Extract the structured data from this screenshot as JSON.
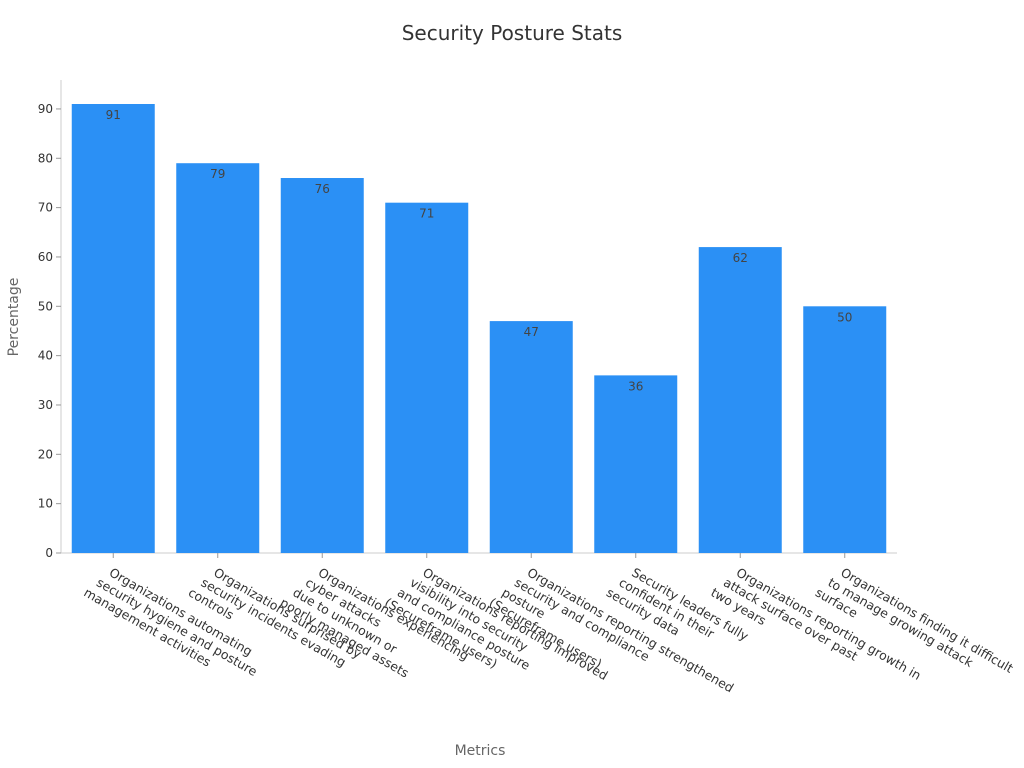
{
  "chart_data": {
    "type": "bar",
    "title": "Security Posture Stats",
    "xlabel": "Metrics",
    "ylabel": "Percentage",
    "ylim": [
      0,
      91
    ],
    "yticks": [
      0,
      10,
      20,
      30,
      40,
      50,
      60,
      70,
      80,
      90
    ],
    "grid": false,
    "bar_color": "#2b90f5",
    "categories": [
      [
        "Organizations automating",
        "security hygiene and posture",
        "management activities"
      ],
      [
        "Organizations surprised by",
        "security incidents evading",
        "controls"
      ],
      [
        "Organizations experiencing",
        "cyber attacks",
        "due to unknown or",
        "poorly managed assets"
      ],
      [
        "Organizations reporting improved",
        "visibility into security",
        "and compliance posture",
        "(Secureframe users)"
      ],
      [
        "Organizations reporting strengthened",
        "security and compliance",
        "posture",
        "(Secureframe users)"
      ],
      [
        "Security leaders fully",
        "confident in their",
        "security data"
      ],
      [
        "Organizations reporting growth in",
        "attack surface over past",
        "two years"
      ],
      [
        "Organizations finding it difficult",
        "to manage growing attack",
        "surface"
      ]
    ],
    "values": [
      91,
      79,
      76,
      71,
      47,
      36,
      62,
      50
    ]
  }
}
